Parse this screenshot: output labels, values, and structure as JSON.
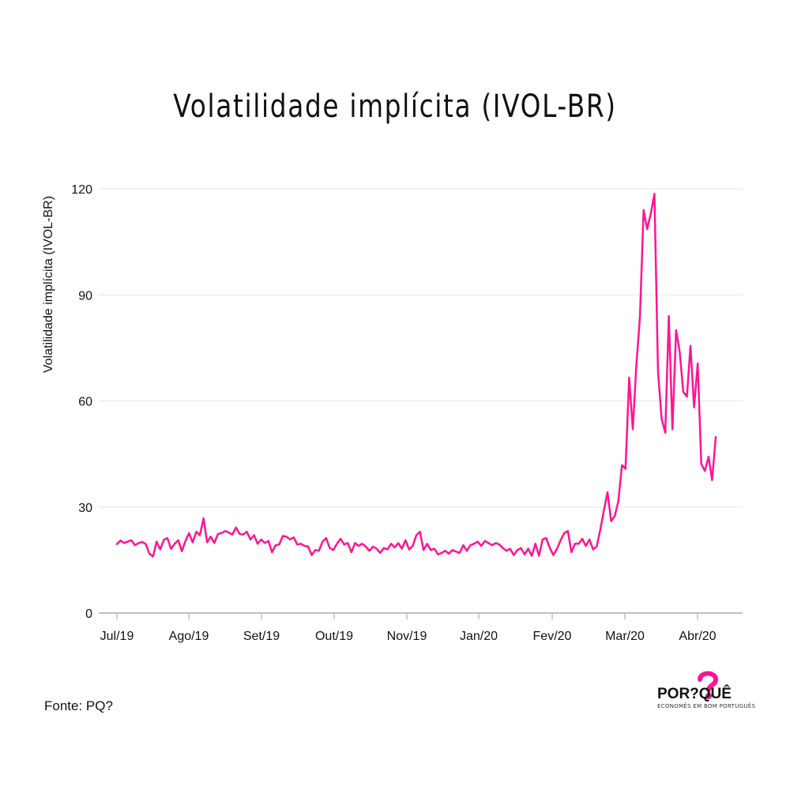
{
  "title": "Volatilidade implícita (IVOL-BR)",
  "source": "Fonte: PQ?",
  "logo": {
    "wordmark": "POR?QUÊ",
    "tagline": "ECONOMÊS EM BOM PORTUGUÊS",
    "mark_color": "#ff1493"
  },
  "chart_data": {
    "type": "line",
    "title": "Volatilidade implícita (IVOL-BR)",
    "xlabel": "",
    "ylabel": "Volatilidade implícita (IVOL-BR)",
    "ylim": [
      0,
      120
    ],
    "yticks": [
      0,
      30,
      60,
      90,
      120
    ],
    "xticks": [
      "Jul/19",
      "Ago/19",
      "Set/19",
      "Out/19",
      "Nov/19",
      "Jan/20",
      "Fev/20",
      "Mar/20",
      "Abr/20"
    ],
    "grid": true,
    "line_color": "#ff1493",
    "series": [
      {
        "values": [
          19.5,
          20.5,
          19.8,
          20.2,
          20.6,
          19.2,
          19.8,
          20.1,
          19.5,
          16.8,
          16.0,
          20.2,
          18.0,
          20.7,
          21.2,
          18.2,
          19.6,
          20.6,
          17.5,
          20.4,
          22.6,
          20.0,
          23.0,
          22.0,
          26.8,
          20.0,
          21.6,
          19.8,
          22.4,
          22.6,
          23.2,
          22.8,
          22.2,
          24.2,
          22.4,
          22.2,
          23.0,
          20.8,
          22.0,
          19.6,
          20.8,
          19.8,
          20.4,
          17.2,
          19.2,
          19.4,
          21.8,
          21.6,
          20.8,
          21.4,
          19.4,
          19.6,
          19.0,
          18.8,
          16.4,
          17.8,
          17.6,
          20.2,
          21.2,
          18.4,
          17.8,
          19.6,
          21.0,
          19.4,
          19.8,
          17.2,
          19.8,
          19.0,
          19.6,
          18.8,
          17.6,
          18.8,
          18.2,
          17.0,
          18.4,
          18.0,
          19.6,
          18.6,
          19.8,
          18.2,
          20.6,
          18.0,
          19.0,
          22.0,
          23.0,
          17.8,
          19.6,
          17.8,
          18.2,
          16.6,
          17.0,
          17.6,
          16.8,
          17.8,
          17.4,
          17.0,
          19.2,
          17.6,
          19.2,
          19.6,
          20.2,
          19.0,
          20.4,
          19.8,
          19.2,
          19.8,
          19.4,
          18.4,
          17.6,
          18.2,
          16.4,
          17.8,
          18.4,
          16.6,
          18.2,
          16.2,
          19.6,
          16.2,
          20.8,
          21.2,
          18.4,
          16.4,
          18.2,
          20.6,
          22.6,
          23.2,
          17.2,
          19.6,
          19.6,
          21.0,
          19.0,
          20.8,
          18.0,
          18.8,
          23.6,
          29.0,
          34.2,
          26.0,
          27.4,
          31.6,
          41.8,
          40.8,
          66.6,
          52.0,
          70.0,
          84.0,
          114.0,
          108.6,
          113.0,
          118.6,
          68.4,
          55.0,
          51.0,
          84.0,
          52.0,
          80.0,
          74.0,
          62.6,
          61.2,
          75.6,
          58.2,
          70.6,
          42.2,
          40.2,
          44.2,
          37.6,
          49.8
        ]
      }
    ]
  }
}
